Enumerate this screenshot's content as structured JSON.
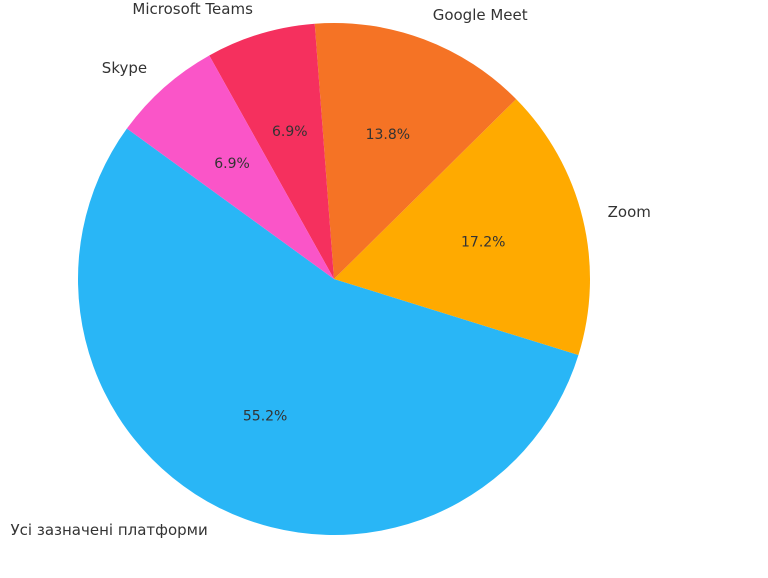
{
  "chart_data": {
    "type": "pie",
    "title": "",
    "start_angle_deg": 144,
    "direction": "counterclockwise",
    "slices": [
      {
        "label": "Усі зазначені платформи",
        "value": 55.2,
        "pct_label": "55.2%",
        "color": "#29B6F6"
      },
      {
        "label": "Zoom",
        "value": 17.2,
        "pct_label": "17.2%",
        "color": "#FFAA00"
      },
      {
        "label": "Google Meet",
        "value": 13.8,
        "pct_label": "13.8%",
        "color": "#F57325"
      },
      {
        "label": "Microsoft Teams",
        "value": 6.9,
        "pct_label": "6.9%",
        "color": "#F5305E"
      },
      {
        "label": "Skype",
        "value": 6.9,
        "pct_label": "6.9%",
        "color": "#FA55C8"
      }
    ]
  }
}
